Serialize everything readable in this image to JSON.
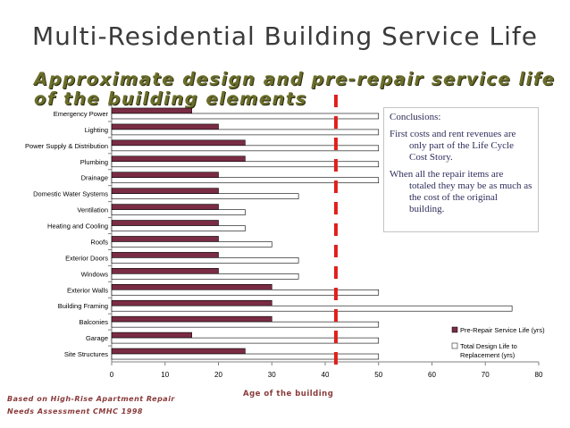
{
  "title": "Multi-Residential Building Service Life",
  "subtitle": "Approximate design and pre-repair service life of the building elements",
  "conclusions": {
    "heading": "Conclusions:",
    "para1": "First costs and rent revenues are only part of the Life Cycle Cost Story.",
    "para2": "When all the repair items are totaled they may be as much as the cost of the original building."
  },
  "source": {
    "line1": "Based on  High-Rise Apartment Repair",
    "line2": "Needs Assessment CMHC 1998"
  },
  "colors": {
    "pre_repair": "#7a2c44",
    "design": "#ffffff",
    "dashed_line": "#e0201c"
  },
  "chart_data": {
    "type": "bar",
    "orientation": "horizontal",
    "categories": [
      "Emergency Power",
      "Lighting",
      "Power Supply & Distribution",
      "Plumbing",
      "Drainage",
      "Domestic Water Systems",
      "Ventilation",
      "Heating and Cooling",
      "Roofs",
      "Exterior Doors",
      "Windows",
      "Exterior Walls",
      "Building Framing",
      "Balconies",
      "Garage",
      "Site Structures"
    ],
    "series": [
      {
        "name": "Pre-Repair Service Life (yrs)",
        "values": [
          15,
          20,
          25,
          25,
          20,
          20,
          20,
          20,
          20,
          20,
          20,
          30,
          30,
          30,
          15,
          25
        ]
      },
      {
        "name": "Total Design Life to Replacement (yrs)",
        "values": [
          50,
          50,
          50,
          50,
          50,
          35,
          25,
          25,
          30,
          35,
          35,
          50,
          75,
          50,
          50,
          50
        ]
      }
    ],
    "xlabel": "Age of the building",
    "xlim": [
      0,
      80
    ],
    "xticks": [
      0,
      10,
      20,
      30,
      40,
      50,
      60,
      70,
      80
    ],
    "reference_line_x": 42,
    "legend": {
      "position": "bottom-right",
      "entries": [
        "Pre-Repair Service Life (yrs)",
        "Total Design Life to Replacement (yrs)"
      ]
    }
  }
}
